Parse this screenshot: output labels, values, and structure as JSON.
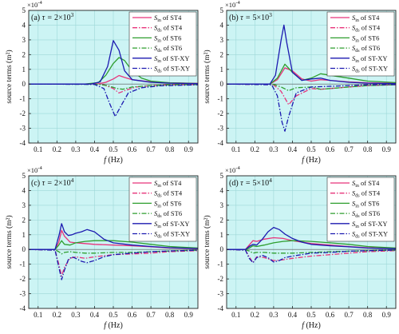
{
  "figure": {
    "xlabel_main": "f",
    "xlabel_unit": " (Hz)",
    "ylabel": "source terms (m²)",
    "exponent_prefix": "×10",
    "exponent_power": "-4"
  },
  "chart_data": [
    {
      "type": "line",
      "panel_label": "(a)",
      "tau_symbol": "τ = ",
      "tau_mantissa": "2×10",
      "tau_power": "3",
      "xlim": [
        0.05,
        0.95
      ],
      "ylim": [
        -4,
        5
      ],
      "xticks": [
        0.1,
        0.2,
        0.3,
        0.4,
        0.5,
        0.6,
        0.7,
        0.8,
        0.9
      ],
      "yticks": [
        -4,
        -3,
        -2,
        -1,
        0,
        1,
        2,
        3,
        4,
        5
      ],
      "grid": true,
      "legend_position": "top-right",
      "series": [
        {
          "name_main": "S",
          "name_sub": "in",
          "name_rest": " of ST4",
          "color": "#e8337a",
          "dash": "solid",
          "x": [
            0.05,
            0.35,
            0.42,
            0.46,
            0.5,
            0.53,
            0.56,
            0.6,
            0.7,
            0.8,
            0.95
          ],
          "y": [
            0,
            0,
            0.02,
            0.12,
            0.35,
            0.58,
            0.45,
            0.3,
            0.15,
            0.08,
            0.05
          ]
        },
        {
          "name_main": "S",
          "name_sub": "ds",
          "name_rest": " of ST4",
          "color": "#e8337a",
          "dash": "dashdot",
          "x": [
            0.05,
            0.4,
            0.45,
            0.5,
            0.53,
            0.57,
            0.62,
            0.7,
            0.8,
            0.95
          ],
          "y": [
            0,
            0,
            -0.05,
            -0.3,
            -0.6,
            -0.4,
            -0.2,
            -0.1,
            -0.05,
            -0.03
          ]
        },
        {
          "name_main": "S",
          "name_sub": "in",
          "name_rest": " of ST6",
          "color": "#2e9e2e",
          "dash": "solid",
          "x": [
            0.05,
            0.35,
            0.42,
            0.46,
            0.5,
            0.53,
            0.56,
            0.6,
            0.65,
            0.7,
            0.8,
            0.95
          ],
          "y": [
            0,
            0,
            0.1,
            0.6,
            1.4,
            1.8,
            1.6,
            0.9,
            0.4,
            0.2,
            0.08,
            0.04
          ]
        },
        {
          "name_main": "S",
          "name_sub": "ds",
          "name_rest": " of ST6",
          "color": "#2e9e2e",
          "dash": "dashdot",
          "x": [
            0.05,
            0.42,
            0.47,
            0.52,
            0.55,
            0.6,
            0.7,
            0.8,
            0.95
          ],
          "y": [
            0,
            -0.02,
            -0.1,
            -0.3,
            -0.35,
            -0.2,
            -0.1,
            -0.05,
            -0.03
          ]
        },
        {
          "name_main": "S",
          "name_sub": "in",
          "name_rest": " of ST-XY",
          "color": "#1c1ab0",
          "dash": "solid",
          "x": [
            0.05,
            0.38,
            0.43,
            0.47,
            0.5,
            0.53,
            0.56,
            0.6,
            0.7,
            0.8,
            0.95
          ],
          "y": [
            0,
            0,
            0.15,
            1.2,
            2.95,
            2.3,
            0.9,
            0.3,
            0.12,
            0.06,
            0.03
          ]
        },
        {
          "name_main": "S",
          "name_sub": "ds",
          "name_rest": " of ST-XY",
          "color": "#1c1ab0",
          "dash": "dashdot",
          "x": [
            0.05,
            0.4,
            0.45,
            0.48,
            0.51,
            0.54,
            0.58,
            0.65,
            0.75,
            0.95
          ],
          "y": [
            0,
            -0.02,
            -0.3,
            -1.3,
            -2.2,
            -1.5,
            -0.6,
            -0.25,
            -0.12,
            -0.05
          ]
        }
      ]
    },
    {
      "type": "line",
      "panel_label": "(b)",
      "tau_symbol": "τ = ",
      "tau_mantissa": "5×10",
      "tau_power": "3",
      "xlim": [
        0.05,
        0.95
      ],
      "ylim": [
        -4,
        5
      ],
      "xticks": [
        0.1,
        0.2,
        0.3,
        0.4,
        0.5,
        0.6,
        0.7,
        0.8,
        0.9
      ],
      "yticks": [
        -4,
        -3,
        -2,
        -1,
        0,
        1,
        2,
        3,
        4,
        5
      ],
      "grid": true,
      "legend_position": "top-right",
      "series": [
        {
          "name_main": "S",
          "name_sub": "in",
          "name_rest": " of ST4",
          "color": "#e8337a",
          "dash": "solid",
          "x": [
            0.05,
            0.28,
            0.32,
            0.36,
            0.4,
            0.45,
            0.5,
            0.55,
            0.6,
            0.7,
            0.8,
            0.95
          ],
          "y": [
            0,
            0,
            0.3,
            1.1,
            0.9,
            0.35,
            0.2,
            0.3,
            0.25,
            0.15,
            0.08,
            0.05
          ]
        },
        {
          "name_main": "S",
          "name_sub": "ds",
          "name_rest": " of ST4",
          "color": "#e8337a",
          "dash": "dashdot",
          "x": [
            0.05,
            0.3,
            0.34,
            0.38,
            0.42,
            0.5,
            0.55,
            0.6,
            0.7,
            0.8,
            0.95
          ],
          "y": [
            0,
            -0.05,
            -0.5,
            -1.4,
            -0.8,
            -0.3,
            -0.35,
            -0.3,
            -0.2,
            -0.1,
            -0.05
          ]
        },
        {
          "name_main": "S",
          "name_sub": "in",
          "name_rest": " of ST6",
          "color": "#2e9e2e",
          "dash": "solid",
          "x": [
            0.05,
            0.28,
            0.32,
            0.36,
            0.4,
            0.45,
            0.5,
            0.55,
            0.6,
            0.7,
            0.8,
            0.95
          ],
          "y": [
            0,
            0,
            0.4,
            1.35,
            0.8,
            0.25,
            0.4,
            0.7,
            0.6,
            0.4,
            0.2,
            0.1
          ]
        },
        {
          "name_main": "S",
          "name_sub": "ds",
          "name_rest": " of ST6",
          "color": "#2e9e2e",
          "dash": "dashdot",
          "x": [
            0.05,
            0.3,
            0.34,
            0.38,
            0.42,
            0.5,
            0.55,
            0.6,
            0.7,
            0.8,
            0.95
          ],
          "y": [
            0,
            -0.02,
            -0.2,
            -0.45,
            -0.25,
            -0.2,
            -0.35,
            -0.3,
            -0.2,
            -0.1,
            -0.05
          ]
        },
        {
          "name_main": "S",
          "name_sub": "in",
          "name_rest": " of ST-XY",
          "color": "#1c1ab0",
          "dash": "solid",
          "x": [
            0.05,
            0.28,
            0.31,
            0.34,
            0.355,
            0.37,
            0.4,
            0.45,
            0.5,
            0.55,
            0.6,
            0.7,
            0.8,
            0.95
          ],
          "y": [
            0,
            0,
            0.6,
            3.0,
            4.0,
            2.8,
            0.8,
            0.25,
            0.35,
            0.4,
            0.25,
            0.12,
            0.06,
            0.03
          ]
        },
        {
          "name_main": "S",
          "name_sub": "ds",
          "name_rest": " of ST-XY",
          "color": "#1c1ab0",
          "dash": "dashdot",
          "x": [
            0.05,
            0.29,
            0.32,
            0.345,
            0.36,
            0.38,
            0.42,
            0.5,
            0.6,
            0.7,
            0.8,
            0.95
          ],
          "y": [
            0,
            -0.05,
            -0.8,
            -2.6,
            -3.2,
            -2.2,
            -0.6,
            -0.2,
            -0.15,
            -0.1,
            -0.05,
            -0.03
          ]
        }
      ]
    },
    {
      "type": "line",
      "panel_label": "(c)",
      "tau_symbol": "τ = ",
      "tau_mantissa": "2×10",
      "tau_power": "4",
      "xlim": [
        0.05,
        0.95
      ],
      "ylim": [
        -4,
        5
      ],
      "xticks": [
        0.1,
        0.2,
        0.3,
        0.4,
        0.5,
        0.6,
        0.7,
        0.8,
        0.9
      ],
      "yticks": [
        -4,
        -3,
        -2,
        -1,
        0,
        1,
        2,
        3,
        4,
        5
      ],
      "grid": true,
      "legend_position": "top-right",
      "series": [
        {
          "name_main": "S",
          "name_sub": "in",
          "name_rest": " of ST4",
          "color": "#e8337a",
          "dash": "solid",
          "x": [
            0.05,
            0.19,
            0.21,
            0.225,
            0.24,
            0.27,
            0.3,
            0.35,
            0.4,
            0.5,
            0.6,
            0.7,
            0.8,
            0.95
          ],
          "y": [
            0,
            0,
            0.5,
            1.3,
            0.9,
            0.5,
            0.45,
            0.4,
            0.35,
            0.3,
            0.25,
            0.18,
            0.1,
            0.05
          ]
        },
        {
          "name_main": "S",
          "name_sub": "ds",
          "name_rest": " of ST4",
          "color": "#e8337a",
          "dash": "dashdot",
          "x": [
            0.05,
            0.19,
            0.21,
            0.225,
            0.24,
            0.27,
            0.3,
            0.35,
            0.4,
            0.5,
            0.6,
            0.7,
            0.8,
            0.95
          ],
          "y": [
            0,
            -0.05,
            -1.0,
            -1.8,
            -1.2,
            -0.6,
            -0.5,
            -0.6,
            -0.5,
            -0.35,
            -0.3,
            -0.25,
            -0.15,
            -0.08
          ]
        },
        {
          "name_main": "S",
          "name_sub": "in",
          "name_rest": " of ST6",
          "color": "#2e9e2e",
          "dash": "solid",
          "x": [
            0.05,
            0.19,
            0.21,
            0.225,
            0.24,
            0.27,
            0.3,
            0.35,
            0.4,
            0.5,
            0.6,
            0.7,
            0.8,
            0.95
          ],
          "y": [
            0,
            0,
            0.3,
            0.6,
            0.35,
            0.3,
            0.45,
            0.55,
            0.6,
            0.6,
            0.5,
            0.35,
            0.2,
            0.1
          ]
        },
        {
          "name_main": "S",
          "name_sub": "ds",
          "name_rest": " of ST6",
          "color": "#2e9e2e",
          "dash": "dashdot",
          "x": [
            0.05,
            0.19,
            0.21,
            0.225,
            0.24,
            0.27,
            0.3,
            0.35,
            0.4,
            0.5,
            0.6,
            0.7,
            0.8,
            0.95
          ],
          "y": [
            0,
            -0.02,
            -0.15,
            -0.3,
            -0.2,
            -0.15,
            -0.2,
            -0.25,
            -0.25,
            -0.2,
            -0.2,
            -0.15,
            -0.1,
            -0.05
          ]
        },
        {
          "name_main": "S",
          "name_sub": "in",
          "name_rest": " of ST-XY",
          "color": "#1c1ab0",
          "dash": "solid",
          "x": [
            0.05,
            0.19,
            0.21,
            0.225,
            0.24,
            0.26,
            0.28,
            0.3,
            0.33,
            0.36,
            0.4,
            0.45,
            0.5,
            0.6,
            0.7,
            0.8,
            0.95
          ],
          "y": [
            0,
            0,
            0.9,
            1.75,
            1.2,
            0.95,
            1.0,
            1.1,
            1.2,
            1.35,
            1.2,
            0.7,
            0.45,
            0.3,
            0.2,
            0.12,
            0.06
          ]
        },
        {
          "name_main": "S",
          "name_sub": "ds",
          "name_rest": " of ST-XY",
          "color": "#1c1ab0",
          "dash": "dashdot",
          "x": [
            0.05,
            0.19,
            0.21,
            0.225,
            0.24,
            0.26,
            0.28,
            0.3,
            0.33,
            0.36,
            0.4,
            0.45,
            0.5,
            0.6,
            0.7,
            0.8,
            0.95
          ],
          "y": [
            0,
            -0.05,
            -1.2,
            -2.05,
            -1.4,
            -0.7,
            -0.5,
            -0.6,
            -0.8,
            -0.9,
            -0.75,
            -0.5,
            -0.35,
            -0.25,
            -0.15,
            -0.1,
            -0.05
          ]
        }
      ]
    },
    {
      "type": "line",
      "panel_label": "(d)",
      "tau_symbol": "τ = ",
      "tau_mantissa": "5×10",
      "tau_power": "4",
      "xlim": [
        0.05,
        0.95
      ],
      "ylim": [
        -4,
        5
      ],
      "xticks": [
        0.1,
        0.2,
        0.3,
        0.4,
        0.5,
        0.6,
        0.7,
        0.8,
        0.9
      ],
      "yticks": [
        -4,
        -3,
        -2,
        -1,
        0,
        1,
        2,
        3,
        4,
        5
      ],
      "grid": true,
      "legend_position": "top-right",
      "series": [
        {
          "name_main": "S",
          "name_sub": "in",
          "name_rest": " of ST4",
          "color": "#e8337a",
          "dash": "solid",
          "x": [
            0.05,
            0.15,
            0.17,
            0.19,
            0.21,
            0.25,
            0.3,
            0.35,
            0.4,
            0.5,
            0.6,
            0.7,
            0.8,
            0.95
          ],
          "y": [
            0,
            0,
            0.3,
            0.6,
            0.55,
            0.7,
            0.8,
            0.75,
            0.6,
            0.4,
            0.3,
            0.2,
            0.12,
            0.06
          ]
        },
        {
          "name_main": "S",
          "name_sub": "ds",
          "name_rest": " of ST4",
          "color": "#e8337a",
          "dash": "dashdot",
          "x": [
            0.05,
            0.15,
            0.17,
            0.19,
            0.21,
            0.25,
            0.3,
            0.35,
            0.4,
            0.5,
            0.6,
            0.7,
            0.8,
            0.95
          ],
          "y": [
            0,
            -0.05,
            -0.5,
            -0.9,
            -0.5,
            -0.55,
            -0.75,
            -0.7,
            -0.6,
            -0.45,
            -0.35,
            -0.25,
            -0.15,
            -0.08
          ]
        },
        {
          "name_main": "S",
          "name_sub": "in",
          "name_rest": " of ST6",
          "color": "#2e9e2e",
          "dash": "solid",
          "x": [
            0.05,
            0.15,
            0.17,
            0.19,
            0.21,
            0.25,
            0.3,
            0.35,
            0.4,
            0.5,
            0.6,
            0.7,
            0.8,
            0.95
          ],
          "y": [
            0,
            0,
            0.1,
            0.25,
            0.2,
            0.3,
            0.45,
            0.55,
            0.6,
            0.55,
            0.45,
            0.35,
            0.2,
            0.1
          ]
        },
        {
          "name_main": "S",
          "name_sub": "ds",
          "name_rest": " of ST6",
          "color": "#2e9e2e",
          "dash": "dashdot",
          "x": [
            0.05,
            0.15,
            0.17,
            0.19,
            0.21,
            0.25,
            0.3,
            0.35,
            0.4,
            0.5,
            0.6,
            0.7,
            0.8,
            0.95
          ],
          "y": [
            0,
            -0.02,
            -0.1,
            -0.25,
            -0.2,
            -0.2,
            -0.25,
            -0.25,
            -0.25,
            -0.2,
            -0.15,
            -0.12,
            -0.08,
            -0.04
          ]
        },
        {
          "name_main": "S",
          "name_sub": "in",
          "name_rest": " of ST-XY",
          "color": "#1c1ab0",
          "dash": "solid",
          "x": [
            0.05,
            0.15,
            0.17,
            0.19,
            0.21,
            0.24,
            0.27,
            0.3,
            0.33,
            0.36,
            0.4,
            0.45,
            0.5,
            0.6,
            0.7,
            0.8,
            0.95
          ],
          "y": [
            0,
            0,
            0.2,
            0.35,
            0.3,
            0.7,
            1.2,
            1.5,
            1.35,
            1.05,
            0.75,
            0.5,
            0.35,
            0.25,
            0.18,
            0.1,
            0.05
          ]
        },
        {
          "name_main": "S",
          "name_sub": "ds",
          "name_rest": " of ST-XY",
          "color": "#1c1ab0",
          "dash": "dashdot",
          "x": [
            0.05,
            0.15,
            0.17,
            0.19,
            0.21,
            0.24,
            0.27,
            0.3,
            0.33,
            0.36,
            0.4,
            0.45,
            0.5,
            0.6,
            0.7,
            0.8,
            0.95
          ],
          "y": [
            0,
            -0.05,
            -0.6,
            -0.9,
            -0.55,
            -0.4,
            -0.55,
            -0.85,
            -0.75,
            -0.55,
            -0.45,
            -0.35,
            -0.25,
            -0.2,
            -0.12,
            -0.08,
            -0.04
          ]
        }
      ]
    }
  ]
}
